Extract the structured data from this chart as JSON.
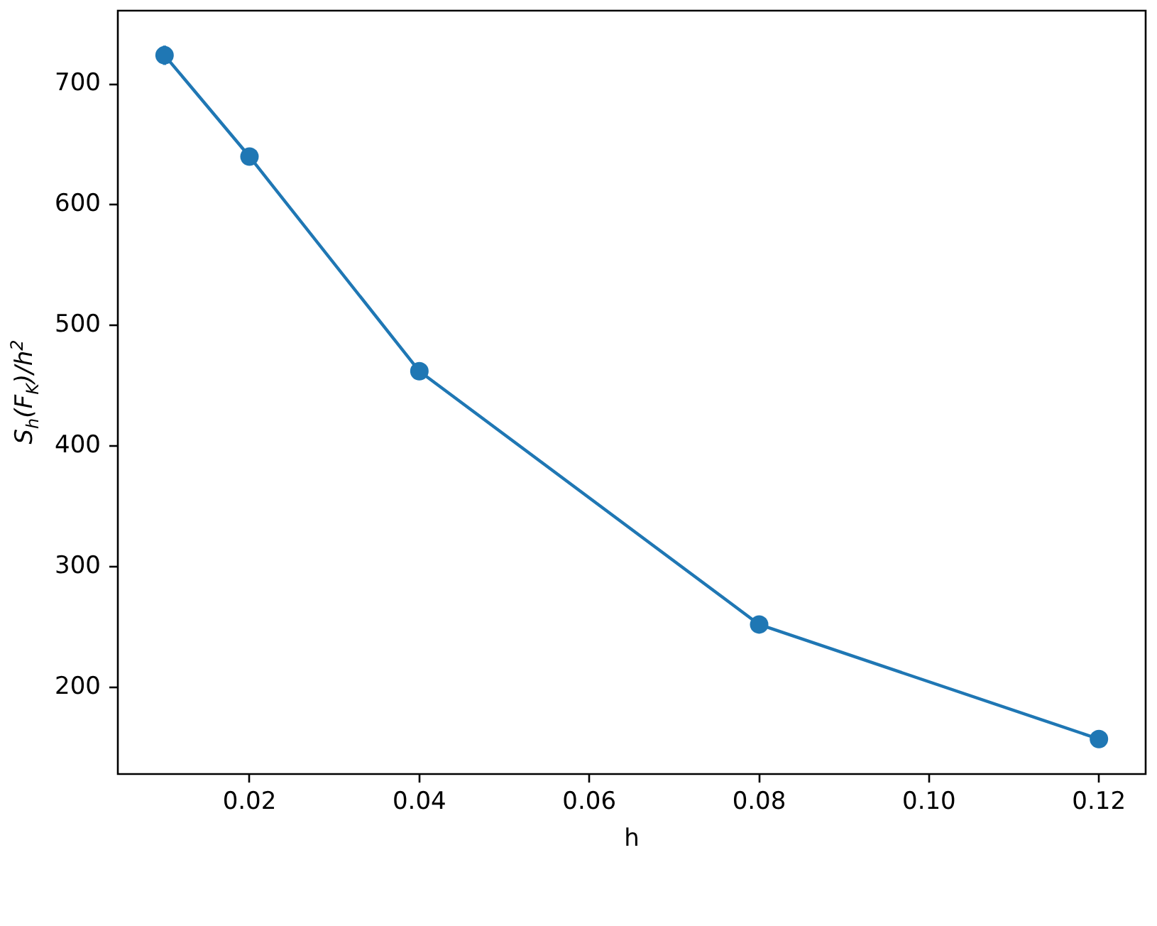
{
  "chart_data": {
    "type": "line",
    "xlabel": "h",
    "ylabel": "S$_{h}$(F$_{K}$)/h$^{2}$",
    "x": [
      0.01,
      0.02,
      0.04,
      0.08,
      0.12
    ],
    "series": [
      {
        "color": "#1f77b4",
        "values": [
          724,
          640,
          462,
          252,
          157
        ],
        "errors": [
          8,
          null,
          null,
          null,
          null
        ]
      }
    ],
    "xlim": [
      0.0045,
      0.1255
    ],
    "ylim": [
      128,
      761
    ],
    "xticks": [
      0.02,
      0.04,
      0.06,
      0.08,
      {
        "value": 0.1,
        "label": "0.10"
      },
      0.12
    ],
    "yticks": [
      200,
      300,
      400,
      500,
      600,
      700
    ],
    "marker": "circle",
    "line_style": "solid"
  }
}
